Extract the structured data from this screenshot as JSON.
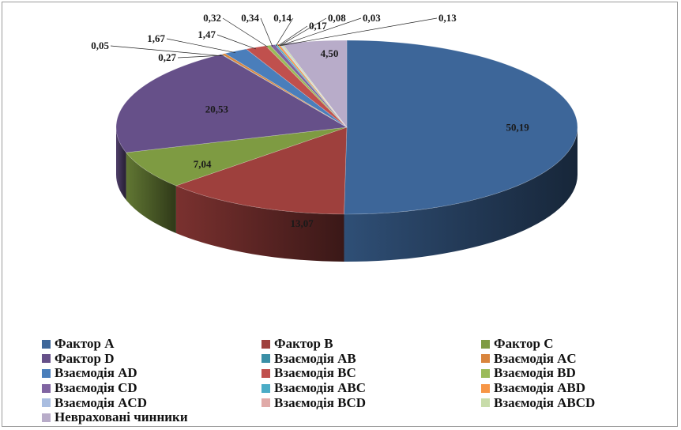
{
  "chart_data": {
    "type": "pie",
    "style": "3d-exploded-none",
    "slices": [
      {
        "label": "Фактор A",
        "value": 50.19,
        "display": "50,19",
        "color": "#3d6699"
      },
      {
        "label": "Фактор B",
        "value": 13.07,
        "display": "13,07",
        "color": "#9e403d"
      },
      {
        "label": "Фактор C",
        "value": 7.04,
        "display": "7,04",
        "color": "#7e9b42"
      },
      {
        "label": "Фактор D",
        "value": 20.53,
        "display": "20,53",
        "color": "#665089"
      },
      {
        "label": "Взаємодія AB",
        "value": 0.05,
        "display": "0,05",
        "color": "#3a8fa6"
      },
      {
        "label": "Взаємодія AC",
        "value": 0.27,
        "display": "0,27",
        "color": "#d9853d"
      },
      {
        "label": "Взаємодія AD",
        "value": 1.67,
        "display": "1,67",
        "color": "#4a7ebb"
      },
      {
        "label": "Взаємодія BC",
        "value": 1.47,
        "display": "1,47",
        "color": "#c0504d"
      },
      {
        "label": "Взаємодія BD",
        "value": 0.32,
        "display": "0,32",
        "color": "#9bbb59"
      },
      {
        "label": "Взаємодія CD",
        "value": 0.34,
        "display": "0,34",
        "color": "#8064a2"
      },
      {
        "label": "Взаємодія ABC",
        "value": 0.14,
        "display": "0,14",
        "color": "#4bacc6"
      },
      {
        "label": "Взаємодія ABD",
        "value": 0.17,
        "display": "0,17",
        "color": "#f79646"
      },
      {
        "label": "Взаємодія ACD",
        "value": 0.08,
        "display": "0,08",
        "color": "#a9bde0"
      },
      {
        "label": "Взаємодія BCD",
        "value": 0.03,
        "display": "0,03",
        "color": "#e0aaa8"
      },
      {
        "label": "Взаємодія ABCD",
        "value": 0.13,
        "display": "0,13",
        "color": "#c8dcaa"
      },
      {
        "label": "Неврахованi чинники",
        "value": 4.5,
        "display": "4,50",
        "color": "#b8acc9"
      }
    ],
    "start_angle_deg": -90,
    "direction": "clockwise",
    "legend_position": "bottom",
    "legend_columns": 3
  }
}
